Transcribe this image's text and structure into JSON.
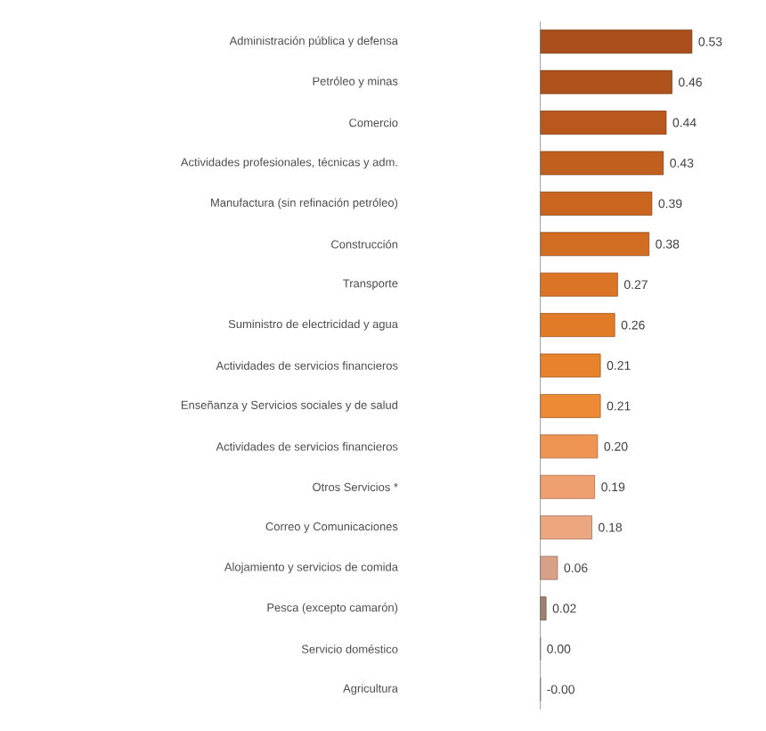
{
  "chart_data": {
    "type": "bar",
    "orientation": "horizontal",
    "categories": [
      "Administración pública y defensa",
      "Petróleo y minas",
      "Comercio",
      "Actividades profesionales, técnicas y adm.",
      "Manufactura (sin refinación petróleo)",
      "Construcción",
      "Transporte",
      "Suministro de electricidad y agua",
      "Actividades de servicios financieros",
      "Enseñanza  y Servicios sociales y de salud",
      "Actividades de servicios financieros",
      "Otros Servicios *",
      "Correo y Comunicaciones",
      "Alojamiento y servicios de comida",
      "Pesca (excepto camarón)",
      "Servicio doméstico",
      "Agricultura"
    ],
    "values": [
      0.53,
      0.46,
      0.44,
      0.43,
      0.39,
      0.38,
      0.27,
      0.26,
      0.21,
      0.21,
      0.2,
      0.19,
      0.18,
      0.06,
      0.02,
      0.0,
      0.0
    ],
    "value_labels": [
      "0.53",
      "0.46",
      "0.44",
      "0.43",
      "0.39",
      "0.38",
      "0.27",
      "0.26",
      "0.21",
      "0.21",
      "0.20",
      "0.19",
      "0.18",
      "0.06",
      "0.02",
      "0.00",
      "-0.00"
    ],
    "colors": [
      "#a84f1c",
      "#b0521c",
      "#b9581d",
      "#c0601f",
      "#cb6620",
      "#d26c22",
      "#dc7425",
      "#e27b27",
      "#e8822b",
      "#ec8a35",
      "#ee9553",
      "#eea070",
      "#eca680",
      "#d9a088",
      "#a08070",
      "#999999",
      "#999999"
    ]
  }
}
